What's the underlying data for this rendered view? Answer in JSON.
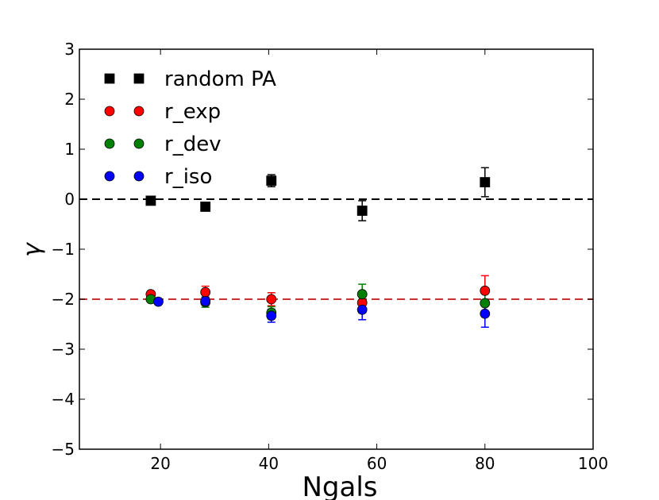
{
  "chart_data": {
    "type": "scatter",
    "title": "",
    "xlabel": "Ngals",
    "ylabel": "γ",
    "xlim": [
      5,
      100
    ],
    "ylim": [
      -5,
      3
    ],
    "xticks": [
      20,
      40,
      60,
      80,
      100
    ],
    "yticks": [
      3,
      2,
      1,
      0,
      -1,
      -2,
      -3,
      -4,
      -5
    ],
    "xtick_labels": [
      "20",
      "40",
      "60",
      "80",
      "100"
    ],
    "ytick_labels": [
      "3",
      "2",
      "1",
      "0",
      "−1",
      "−2",
      "−3",
      "−4",
      "−5"
    ],
    "grid": false,
    "legend_position": "top-left",
    "reference_lines": [
      {
        "y": 0,
        "color": "#000000",
        "style": "dashed"
      },
      {
        "y": -2,
        "color": "#c83232",
        "style": "dashed"
      }
    ],
    "series": [
      {
        "name": "random PA",
        "marker": "square",
        "color": "#000000",
        "points": [
          {
            "x": 18.2,
            "y": -0.03,
            "err": 0.05
          },
          {
            "x": 28.3,
            "y": -0.15,
            "err": 0.08
          },
          {
            "x": 40.5,
            "y": 0.37,
            "err": 0.12
          },
          {
            "x": 57.3,
            "y": -0.23,
            "err": 0.2
          },
          {
            "x": 80.0,
            "y": 0.34,
            "err": 0.29
          }
        ]
      },
      {
        "name": "r_exp",
        "marker": "circle",
        "color": "#ff0000",
        "points": [
          {
            "x": 18.2,
            "y": -1.9,
            "err": 0.05
          },
          {
            "x": 28.3,
            "y": -1.86,
            "err": 0.12
          },
          {
            "x": 40.5,
            "y": -2.0,
            "err": 0.13
          },
          {
            "x": 57.3,
            "y": -2.07,
            "err": 0.2
          },
          {
            "x": 80.0,
            "y": -1.83,
            "err": 0.3
          }
        ]
      },
      {
        "name": "r_dev",
        "marker": "circle",
        "color": "#008000",
        "points": [
          {
            "x": 18.2,
            "y": -2.0,
            "err": 0.05
          },
          {
            "x": 28.3,
            "y": -2.06,
            "err": 0.1
          },
          {
            "x": 40.5,
            "y": -2.27,
            "err": 0.12
          },
          {
            "x": 57.3,
            "y": -1.9,
            "err": 0.2
          },
          {
            "x": 80.0,
            "y": -2.08,
            "err": 0.25
          }
        ]
      },
      {
        "name": "r_iso",
        "marker": "circle",
        "color": "#0000ff",
        "points": [
          {
            "x": 19.6,
            "y": -2.05,
            "err": 0.05
          },
          {
            "x": 28.3,
            "y": -2.04,
            "err": 0.08
          },
          {
            "x": 40.5,
            "y": -2.33,
            "err": 0.13
          },
          {
            "x": 57.3,
            "y": -2.21,
            "err": 0.2
          },
          {
            "x": 80.0,
            "y": -2.29,
            "err": 0.27
          }
        ]
      }
    ]
  }
}
